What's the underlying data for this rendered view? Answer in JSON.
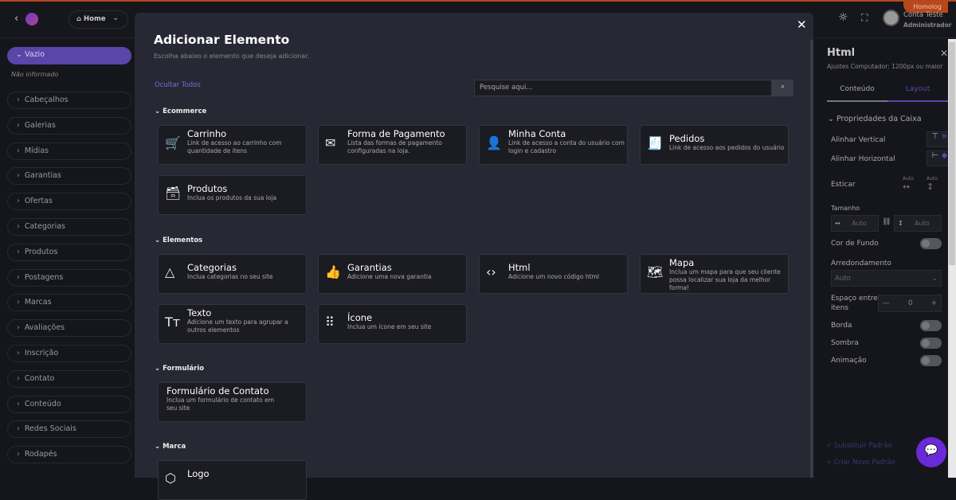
{
  "topbar": {
    "env_badge": "Homolog",
    "home_label": "Home",
    "user_name": "Conta Teste",
    "user_role": "Administrador"
  },
  "sidebar": {
    "selected": "Vazio",
    "selected_note": "Não informado",
    "items": [
      "Cabeçalhos",
      "Galerias",
      "Mídias",
      "Garantias",
      "Ofertas",
      "Categorias",
      "Produtos",
      "Postagens",
      "Marcas",
      "Avaliações",
      "Inscrição",
      "Contato",
      "Conteúdo",
      "Redes Sociais",
      "Rodapés"
    ]
  },
  "modal": {
    "title": "Adicionar Elemento",
    "subtitle": "Escolha abaixo o elemento que deseja adicionar.",
    "hide_all": "Ocultar Todos",
    "search_placeholder": "Pesquise aqui...",
    "sections": [
      {
        "name": "Ecommerce",
        "cards": [
          {
            "icon": "cart-icon",
            "title": "Carrinho",
            "desc": "Link de acesso ao carrinho com quantidade de itens"
          },
          {
            "icon": "mail-check-icon",
            "title": "Forma de Pagamento",
            "desc": "Lista das formas de pagamento configuradas na loja."
          },
          {
            "icon": "user-icon",
            "title": "Minha Conta",
            "desc": "Link de acesso a conta do usuário com login e cadastro"
          },
          {
            "icon": "orders-icon",
            "title": "Pedidos",
            "desc": "Link de acesso aos pedidos do usuário"
          },
          {
            "icon": "archive-icon",
            "title": "Produtos",
            "desc": "Inclua os produtos da sua loja"
          }
        ]
      },
      {
        "name": "Elementos",
        "cards": [
          {
            "icon": "shapes-icon",
            "title": "Categorias",
            "desc": "Inclua categorias no seu site"
          },
          {
            "icon": "thumbs-up-icon",
            "title": "Garantias",
            "desc": "Adicione uma nova garantia"
          },
          {
            "icon": "code-icon",
            "title": "Html",
            "desc": "Adicione um novo código html"
          },
          {
            "icon": "map-icon",
            "title": "Mapa",
            "desc": "Inclua um mapa para que seu cliente possa localizar sua loja da melhor forma!"
          },
          {
            "icon": "text-icon",
            "title": "Texto",
            "desc": "Adicione um texto para agrupar a outros elementos"
          },
          {
            "icon": "grid-dots-icon",
            "title": "Ícone",
            "desc": "Inclua um ícone em seu site"
          }
        ]
      },
      {
        "name": "Formulário",
        "cards": [
          {
            "icon": "",
            "title": "Formulário de Contato",
            "desc": "Inclua um formulário de contato em seu site"
          }
        ]
      },
      {
        "name": "Marca",
        "cards": [
          {
            "icon": "logo-icon",
            "title": "Logo",
            "desc": ""
          }
        ]
      }
    ]
  },
  "panel": {
    "title": "Html",
    "subtitle": "Ajustes Computador: 1200px ou maior",
    "tabs": [
      "Conteúdo",
      "Layout"
    ],
    "active_tab": "Layout",
    "section": "Propriedades da Caixa",
    "align_vertical": "Alinhar Vertical",
    "align_horizontal": "Alinhar Horizontal",
    "stretch": "Esticar",
    "stretch_w": "Auto",
    "stretch_h": "Auto",
    "size": "Tamanho",
    "width": "Auto",
    "height": "Auto",
    "bg_color": "Cor de Fundo",
    "rounding": "Arredondamento",
    "rounding_value": "Auto",
    "gap": "Espaço entre itens",
    "gap_value": "0",
    "border": "Borda",
    "shadow": "Sombra",
    "animation": "Animação",
    "replace_default": "Substituir Padrão",
    "create_default": "Criar Novo Padrão"
  },
  "colors": {
    "accent": "#5a45a8",
    "bg": "#15151c",
    "modal": "#272833",
    "card": "#1b1b22",
    "env": "#b8481c",
    "chat": "#6a2ad8"
  }
}
